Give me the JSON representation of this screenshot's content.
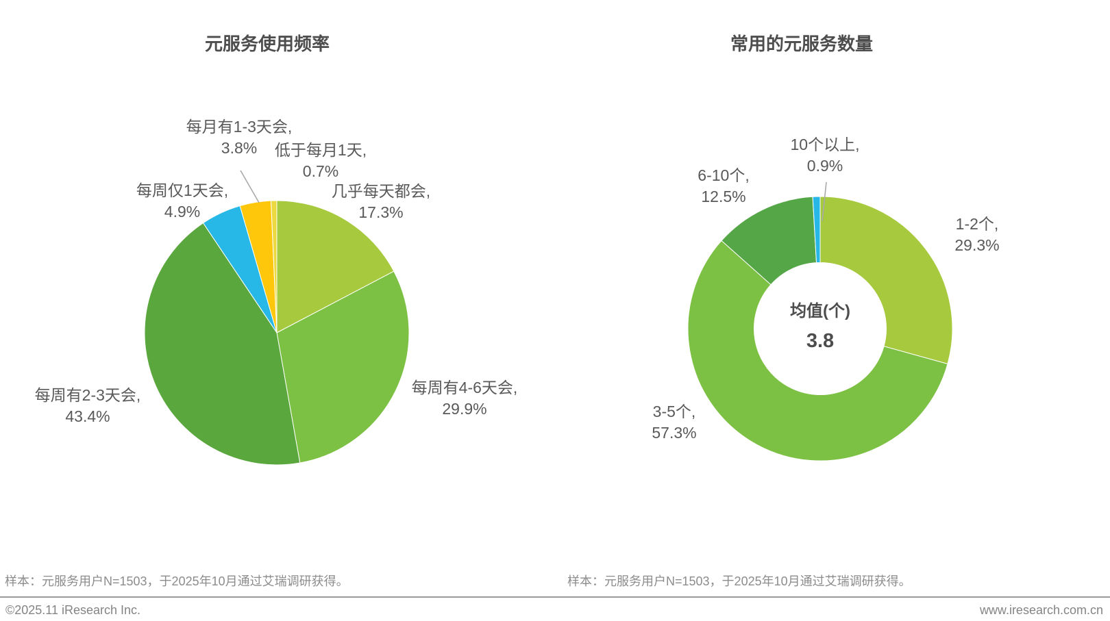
{
  "page": {
    "background": "#ffffff"
  },
  "chart_data": [
    {
      "type": "pie",
      "title": "元服务使用频率",
      "categories": [
        "几乎每天都会",
        "每周有4-6天会",
        "每周有2-3天会",
        "每周仅1天会",
        "每月有1-3天会",
        "低于每月1天"
      ],
      "values": [
        17.3,
        29.9,
        43.4,
        4.9,
        3.8,
        0.7
      ],
      "colors": [
        "#a6c93d",
        "#7cc143",
        "#5aa73e",
        "#27b8e8",
        "#fec70c",
        "#ecd93f"
      ],
      "unit": "%",
      "start_angle": "12-oclock",
      "direction": "clockwise",
      "labels": [
        {
          "text": "几乎每天都会,",
          "value_text": "17.3%"
        },
        {
          "text": "每周有4-6天会,",
          "value_text": "29.9%"
        },
        {
          "text": "每周有2-3天会,",
          "value_text": "43.4%"
        },
        {
          "text": "每周仅1天会,",
          "value_text": "4.9%"
        },
        {
          "text": "每月有1-3天会,",
          "value_text": "3.8%"
        },
        {
          "text": "低于每月1天,",
          "value_text": "0.7%"
        }
      ]
    },
    {
      "type": "donut",
      "title": "常用的元服务数量",
      "categories": [
        "1-2个",
        "3-5个",
        "6-10个",
        "10个以上"
      ],
      "values": [
        29.3,
        57.3,
        12.5,
        0.9
      ],
      "colors": [
        "#a6c93d",
        "#7cc143",
        "#55a646",
        "#27b8e8"
      ],
      "unit": "%",
      "start_angle": "12-oclock",
      "direction": "clockwise",
      "inner_radius_ratio": 0.5,
      "center_label": "均值(个)",
      "center_value": "3.8",
      "labels": [
        {
          "text": "1-2个,",
          "value_text": "29.3%"
        },
        {
          "text": "3-5个,",
          "value_text": "57.3%"
        },
        {
          "text": "6-10个,",
          "value_text": "12.5%"
        },
        {
          "text": "10个以上,",
          "value_text": "0.9%"
        }
      ]
    }
  ],
  "sample_notes": [
    "样本：元服务用户N=1503，于2025年10月通过艾瑞调研获得。",
    "样本：元服务用户N=1503，于2025年10月通过艾瑞调研获得。"
  ],
  "footer": {
    "copyright": "©2025.11 iResearch Inc.",
    "website": "www.iresearch.com.cn"
  },
  "colors": {
    "title_text": "#4d4d4d",
    "label_text": "#595959",
    "note_text": "#8c8c8c",
    "footer_text": "#848484",
    "divider": "#9a9a9a",
    "leader_line": "#a9a9a9"
  }
}
